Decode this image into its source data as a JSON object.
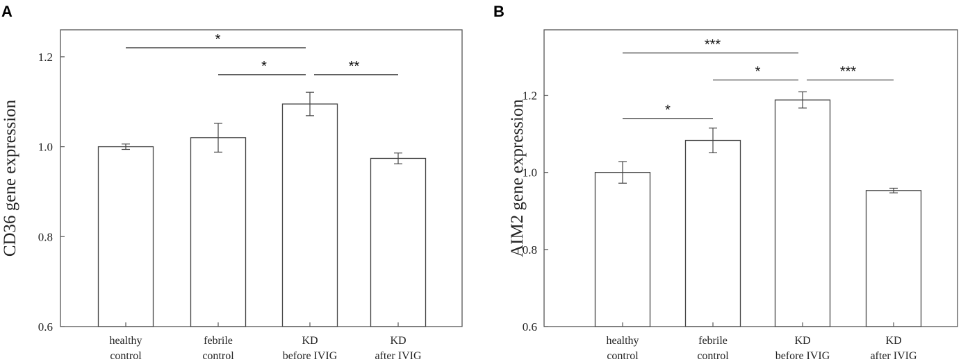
{
  "chart_data": [
    {
      "panel": "A",
      "type": "bar",
      "ylabel": "CD36 gene expression",
      "ylim": [
        0.6,
        1.26
      ],
      "yticks": [
        "0.6",
        "0.8",
        "1.0",
        "1.2"
      ],
      "ytick_values": [
        0.6,
        0.8,
        1.0,
        1.2
      ],
      "categories": [
        [
          "healthy",
          "control"
        ],
        [
          "febrile",
          "control"
        ],
        [
          "KD",
          "before IVIG"
        ],
        [
          "KD",
          "after IVIG"
        ]
      ],
      "values": [
        1.0,
        1.02,
        1.095,
        0.974
      ],
      "errors": [
        0.006,
        0.032,
        0.026,
        0.012
      ],
      "significance": [
        {
          "from": 0,
          "to": 2,
          "label": "*",
          "level": 1.22
        },
        {
          "from": 1,
          "to": 2,
          "label": "*",
          "level": 1.16
        },
        {
          "from": 2,
          "to": 3,
          "label": "**",
          "level": 1.16
        }
      ]
    },
    {
      "panel": "B",
      "type": "bar",
      "ylabel": "AIM2 gene expression",
      "ylim": [
        0.6,
        1.37
      ],
      "yticks": [
        "0.6",
        "0.8",
        "1.0",
        "1.2"
      ],
      "ytick_values": [
        0.6,
        0.8,
        1.0,
        1.2
      ],
      "categories": [
        [
          "healthy",
          "control"
        ],
        [
          "febrile",
          "control"
        ],
        [
          "KD",
          "before IVIG"
        ],
        [
          "KD",
          "after IVIG"
        ]
      ],
      "values": [
        1.0,
        1.083,
        1.188,
        0.953
      ],
      "errors": [
        0.028,
        0.032,
        0.021,
        0.006
      ],
      "significance": [
        {
          "from": 0,
          "to": 2,
          "label": "***",
          "level": 1.31
        },
        {
          "from": 1,
          "to": 2,
          "label": "*",
          "level": 1.24
        },
        {
          "from": 2,
          "to": 3,
          "label": "***",
          "level": 1.24
        },
        {
          "from": 0,
          "to": 1,
          "label": "*",
          "level": 1.14
        }
      ]
    }
  ]
}
